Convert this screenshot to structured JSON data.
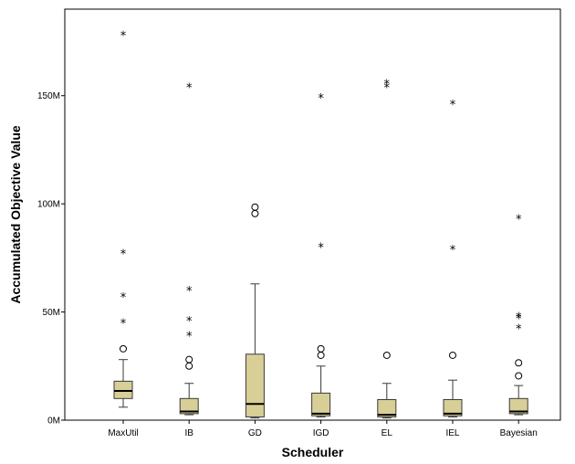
{
  "chart_data": {
    "type": "boxplot",
    "xlabel": "Scheduler",
    "ylabel": "Accumulated Objective Value",
    "ylim": [
      0,
      190
    ],
    "y_unit": "M",
    "yticks": [
      {
        "value": 0,
        "label": "0M"
      },
      {
        "value": 50,
        "label": "50M"
      },
      {
        "value": 100,
        "label": "100M"
      },
      {
        "value": 150,
        "label": "150M"
      }
    ],
    "grid": false,
    "colors": {
      "box_fill": "#d8cf97",
      "box_stroke": "#3a3a3a",
      "axis": "#000000"
    },
    "categories": [
      "MaxUtil",
      "IB",
      "GD",
      "IGD",
      "EL",
      "IEL",
      "Bayesian"
    ],
    "boxes": [
      {
        "category": "MaxUtil",
        "whisker_low": 6,
        "q1": 10,
        "median": 13.5,
        "q3": 18,
        "whisker_high": 28,
        "outliers": [
          33
        ],
        "extremes": [
          45,
          57,
          77,
          178
        ]
      },
      {
        "category": "IB",
        "whisker_low": 2.5,
        "q1": 3,
        "median": 4,
        "q3": 10,
        "whisker_high": 17,
        "outliers": [
          25,
          28
        ],
        "extremes": [
          39,
          46,
          60,
          154
        ]
      },
      {
        "category": "GD",
        "whisker_low": 1,
        "q1": 1.5,
        "median": 7.5,
        "q3": 30.5,
        "whisker_high": 63,
        "outliers": [
          95.5,
          98.5
        ],
        "extremes": []
      },
      {
        "category": "IGD",
        "whisker_low": 1.5,
        "q1": 2,
        "median": 3,
        "q3": 12.5,
        "whisker_high": 25,
        "outliers": [
          30,
          33
        ],
        "extremes": [
          80,
          149
        ]
      },
      {
        "category": "EL",
        "whisker_low": 1,
        "q1": 1.5,
        "median": 2.5,
        "q3": 9.5,
        "whisker_high": 17,
        "outliers": [
          30
        ],
        "extremes": [
          154,
          155.5
        ]
      },
      {
        "category": "IEL",
        "whisker_low": 1.5,
        "q1": 2,
        "median": 3,
        "q3": 9.5,
        "whisker_high": 18.5,
        "outliers": [
          30
        ],
        "extremes": [
          79,
          146
        ]
      },
      {
        "category": "Bayesian",
        "whisker_low": 2.5,
        "q1": 3,
        "median": 4,
        "q3": 10,
        "whisker_high": 16,
        "outliers": [
          20.5,
          26.5
        ],
        "extremes": [
          42.5,
          47,
          48,
          93
        ]
      }
    ]
  }
}
